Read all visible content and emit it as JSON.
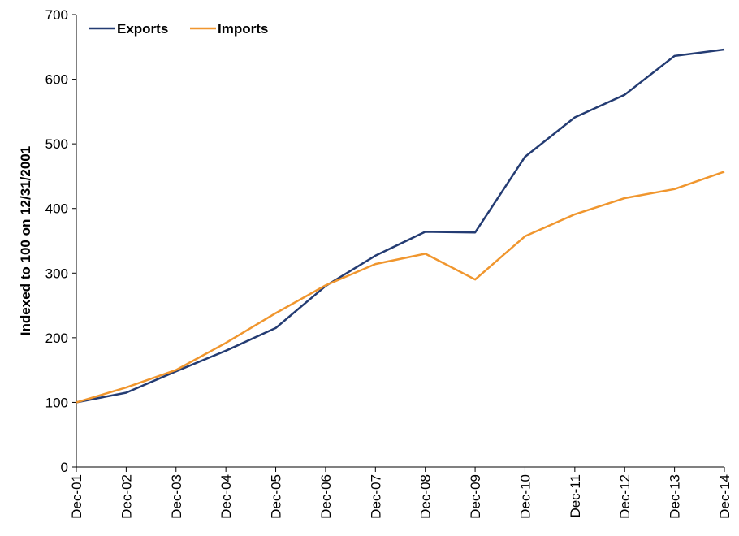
{
  "chart_data": {
    "type": "line",
    "title": "",
    "xlabel": "",
    "ylabel": "Indexed to 100 on 12/31/2001",
    "categories": [
      "Dec-01",
      "Dec-02",
      "Dec-03",
      "Dec-04",
      "Dec-05",
      "Dec-06",
      "Dec-07",
      "Dec-08",
      "Dec-09",
      "Dec-10",
      "Dec-11",
      "Dec-12",
      "Dec-13",
      "Dec-14"
    ],
    "ylim": [
      0,
      700
    ],
    "yticks": [
      0,
      100,
      200,
      300,
      400,
      500,
      600,
      700
    ],
    "grid": false,
    "legend_position": "top-left",
    "series": [
      {
        "name": "Exports",
        "color": "#243c73",
        "values": [
          100,
          115,
          148,
          180,
          215,
          280,
          327,
          364,
          363,
          480,
          541,
          576,
          636,
          646
        ]
      },
      {
        "name": "Imports",
        "color": "#f0962e",
        "values": [
          100,
          123,
          150,
          192,
          238,
          281,
          314,
          330,
          290,
          357,
          391,
          416,
          430,
          457
        ]
      }
    ]
  }
}
